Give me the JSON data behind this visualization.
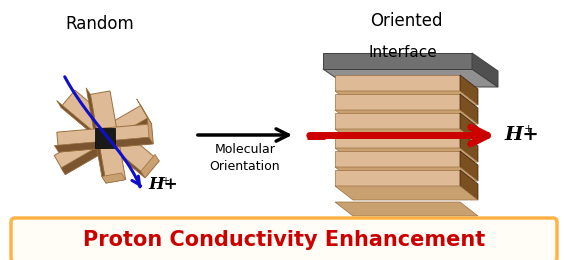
{
  "title": "Proton Conductivity Enhancement",
  "title_color": "#CC0000",
  "title_fontsize": 15,
  "label_random": "Random",
  "label_oriented": "Oriented",
  "label_interface": "Interface",
  "label_molecular": "Molecular\nOrientation",
  "label_hplus_left": "H+",
  "label_hplus_right": "H+",
  "wood_light": "#DEBA96",
  "wood_mid": "#C9A070",
  "wood_dark": "#9B7040",
  "wood_shadow": "#7A5530",
  "layer_face": "#DEBA96",
  "layer_top": "#C9A070",
  "layer_right": "#7A5020",
  "base_top": "#909090",
  "base_front": "#707070",
  "base_side": "#505050",
  "arrow_color": "#CC0000",
  "curve_color": "#1010CC",
  "black": "#000000",
  "bg_color": "#FFFFFF",
  "border_color": "#FFB347",
  "border_fill": "#FFFDF5",
  "figsize": [
    5.68,
    2.6
  ],
  "dpi": 100
}
